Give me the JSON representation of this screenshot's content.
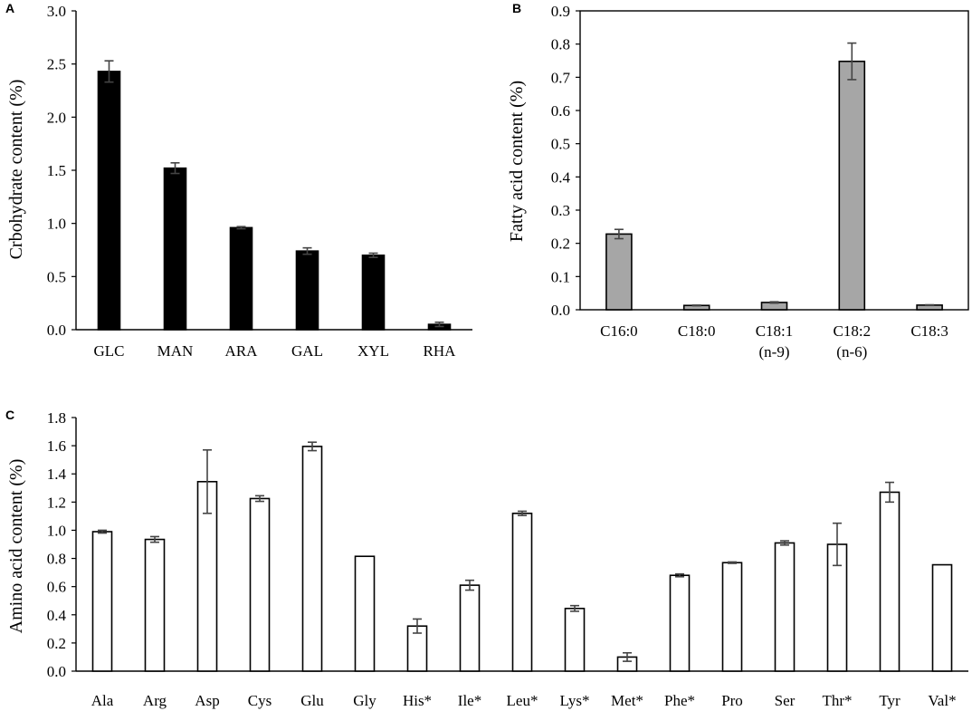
{
  "chart_data": [
    {
      "panel": "A",
      "type": "bar",
      "title": "",
      "xlabel": "",
      "ylabel": "Crbohydrate content (%)",
      "ylim": [
        0,
        3.0
      ],
      "yticks": [
        "0.0",
        "0.5",
        "1.0",
        "1.5",
        "2.0",
        "2.5",
        "3.0"
      ],
      "bar_color": "#000000",
      "categories": [
        [
          "GLC"
        ],
        [
          "MAN"
        ],
        [
          "ARA"
        ],
        [
          "GAL"
        ],
        [
          "XYL"
        ],
        [
          "RHA"
        ]
      ],
      "values": [
        2.43,
        1.52,
        0.96,
        0.74,
        0.7,
        0.05
      ],
      "errors": [
        0.1,
        0.05,
        0.01,
        0.03,
        0.02,
        0.02
      ]
    },
    {
      "panel": "B",
      "type": "bar",
      "title": "",
      "xlabel": "",
      "ylabel": "Fatty acid content (%)",
      "ylim": [
        0,
        0.9
      ],
      "yticks": [
        "0.0",
        "0.1",
        "0.2",
        "0.3",
        "0.4",
        "0.5",
        "0.6",
        "0.7",
        "0.8",
        "0.9"
      ],
      "bar_color": "#a6a6a6",
      "categories": [
        [
          "C16:0"
        ],
        [
          "C18:0"
        ],
        [
          "C18:1",
          "(n-9)"
        ],
        [
          "C18:2",
          "(n-6)"
        ],
        [
          "C18:3"
        ]
      ],
      "values": [
        0.228,
        0.013,
        0.022,
        0.748,
        0.014
      ],
      "errors": [
        0.014,
        0.001,
        0.002,
        0.055,
        0.001
      ]
    },
    {
      "panel": "C",
      "type": "bar",
      "title": "",
      "xlabel": "",
      "ylabel": "Amino acid content (%)",
      "ylim": [
        0,
        1.8
      ],
      "yticks": [
        "0.0",
        "0.2",
        "0.4",
        "0.6",
        "0.8",
        "1.0",
        "1.2",
        "1.4",
        "1.6",
        "1.8"
      ],
      "bar_color": "#ffffff",
      "categories": [
        [
          "Ala"
        ],
        [
          "Arg"
        ],
        [
          "Asp"
        ],
        [
          "Cys"
        ],
        [
          "Glu"
        ],
        [
          "Gly"
        ],
        [
          "His*"
        ],
        [
          "Ile*"
        ],
        [
          "Leu*"
        ],
        [
          "Lys*"
        ],
        [
          "Met*"
        ],
        [
          "Phe*"
        ],
        [
          "Pro"
        ],
        [
          "Ser"
        ],
        [
          "Thr*"
        ],
        [
          "Tyr"
        ],
        [
          "Val*"
        ]
      ],
      "values": [
        0.99,
        0.935,
        1.345,
        1.225,
        1.595,
        0.815,
        0.32,
        0.61,
        1.12,
        0.445,
        0.1,
        0.68,
        0.77,
        0.91,
        0.9,
        1.27,
        0.755
      ],
      "errors": [
        0.01,
        0.02,
        0.225,
        0.02,
        0.03,
        0,
        0.05,
        0.035,
        0.015,
        0.02,
        0.03,
        0.01,
        0.005,
        0.015,
        0.15,
        0.07,
        0
      ]
    }
  ]
}
